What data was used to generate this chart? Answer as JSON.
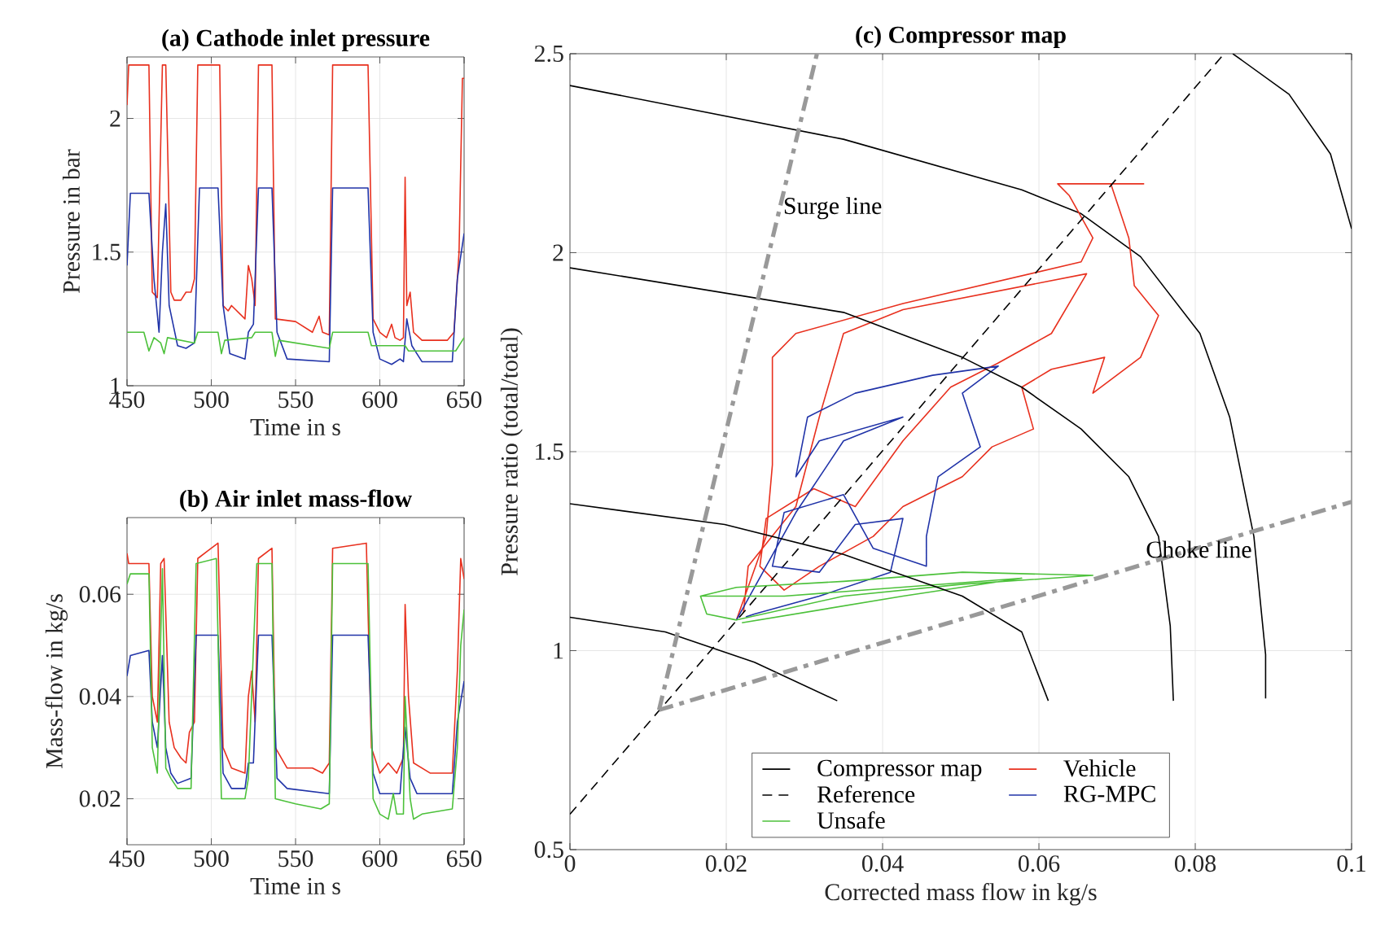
{
  "chart_data": [
    {
      "type": "line",
      "title": "(a) Cathode inlet pressure",
      "xlabel": "Time in s",
      "ylabel": "Pressure in bar",
      "xlim": [
        450,
        650
      ],
      "ylim": [
        1,
        2.23
      ],
      "xticks": [
        450,
        500,
        550,
        600,
        650
      ],
      "yticks": [
        1,
        1.5,
        2
      ],
      "grid": true,
      "series": [
        {
          "color": "#e8301e",
          "x": [
            450,
            451,
            463,
            465,
            468,
            471,
            473,
            476,
            478,
            482,
            485,
            488,
            490,
            492,
            505,
            507,
            510,
            512,
            520,
            522,
            524,
            526,
            528,
            536,
            538,
            550,
            560,
            564,
            566,
            570,
            572,
            593,
            596,
            600,
            604,
            607,
            609,
            612,
            614,
            615,
            616,
            618,
            620,
            625,
            640,
            644,
            647,
            649,
            650
          ],
          "values": [
            2.05,
            2.2,
            2.2,
            1.35,
            1.33,
            2.2,
            2.2,
            1.35,
            1.32,
            1.32,
            1.35,
            1.35,
            1.4,
            2.2,
            2.2,
            1.3,
            1.28,
            1.3,
            1.25,
            1.45,
            1.4,
            1.3,
            2.2,
            2.2,
            1.25,
            1.24,
            1.2,
            1.26,
            1.2,
            1.19,
            2.2,
            2.2,
            1.25,
            1.2,
            1.18,
            1.23,
            1.18,
            1.17,
            1.18,
            1.78,
            1.3,
            1.35,
            1.2,
            1.17,
            1.17,
            1.2,
            1.5,
            2.15,
            2.15
          ]
        },
        {
          "color": "#2033a8",
          "x": [
            450,
            452,
            463,
            466,
            469,
            471,
            473,
            475,
            480,
            485,
            490,
            493,
            504,
            507,
            511,
            520,
            522,
            525,
            528,
            536,
            539,
            545,
            570,
            572,
            593,
            596,
            600,
            607,
            612,
            614,
            616,
            619,
            625,
            643,
            646,
            650
          ],
          "values": [
            1.45,
            1.72,
            1.72,
            1.4,
            1.2,
            1.5,
            1.68,
            1.3,
            1.15,
            1.14,
            1.16,
            1.74,
            1.74,
            1.3,
            1.12,
            1.1,
            1.2,
            1.23,
            1.74,
            1.74,
            1.2,
            1.1,
            1.09,
            1.74,
            1.74,
            1.2,
            1.1,
            1.08,
            1.1,
            1.09,
            1.25,
            1.15,
            1.09,
            1.09,
            1.4,
            1.57
          ]
        },
        {
          "color": "#4cc13a",
          "x": [
            450,
            460,
            463,
            466,
            470,
            472,
            474,
            490,
            492,
            504,
            506,
            508,
            524,
            526,
            536,
            538,
            540,
            570,
            572,
            593,
            595,
            615,
            617,
            645,
            650
          ],
          "values": [
            1.2,
            1.2,
            1.13,
            1.18,
            1.16,
            1.12,
            1.18,
            1.16,
            1.2,
            1.2,
            1.12,
            1.17,
            1.18,
            1.2,
            1.2,
            1.11,
            1.17,
            1.14,
            1.2,
            1.2,
            1.15,
            1.15,
            1.13,
            1.13,
            1.18
          ]
        }
      ]
    },
    {
      "type": "line",
      "title": "(b) Air inlet mass-flow",
      "xlabel": "Time in s",
      "ylabel": "Mass-flow in kg/s",
      "xlim": [
        450,
        650
      ],
      "ylim": [
        0.011,
        0.075
      ],
      "xticks": [
        450,
        500,
        550,
        600,
        650
      ],
      "yticks": [
        0.02,
        0.04,
        0.06
      ],
      "grid": true,
      "series": [
        {
          "color": "#e8301e",
          "x": [
            450,
            451,
            463,
            465,
            468,
            470,
            472,
            475,
            478,
            482,
            485,
            487,
            490,
            492,
            500,
            504,
            507,
            512,
            520,
            522,
            524,
            526,
            528,
            536,
            538,
            545,
            560,
            566,
            570,
            572,
            592,
            595,
            600,
            605,
            610,
            614,
            615,
            617,
            620,
            630,
            643,
            646,
            648,
            650
          ],
          "values": [
            0.068,
            0.066,
            0.066,
            0.04,
            0.035,
            0.066,
            0.067,
            0.035,
            0.03,
            0.028,
            0.027,
            0.033,
            0.035,
            0.067,
            0.069,
            0.07,
            0.03,
            0.026,
            0.025,
            0.04,
            0.045,
            0.035,
            0.067,
            0.069,
            0.03,
            0.026,
            0.026,
            0.025,
            0.027,
            0.069,
            0.07,
            0.03,
            0.025,
            0.027,
            0.025,
            0.028,
            0.058,
            0.04,
            0.027,
            0.025,
            0.025,
            0.045,
            0.067,
            0.063
          ]
        },
        {
          "color": "#2033a8",
          "x": [
            450,
            452,
            463,
            465,
            468,
            471,
            473,
            476,
            480,
            488,
            491,
            504,
            507,
            512,
            520,
            522,
            525,
            528,
            536,
            539,
            545,
            570,
            572,
            593,
            596,
            600,
            612,
            615,
            618,
            622,
            643,
            646,
            650
          ],
          "values": [
            0.044,
            0.048,
            0.049,
            0.035,
            0.03,
            0.048,
            0.03,
            0.025,
            0.023,
            0.024,
            0.052,
            0.052,
            0.025,
            0.022,
            0.022,
            0.027,
            0.027,
            0.052,
            0.052,
            0.024,
            0.022,
            0.021,
            0.052,
            0.052,
            0.025,
            0.021,
            0.021,
            0.034,
            0.024,
            0.021,
            0.021,
            0.035,
            0.043
          ]
        },
        {
          "color": "#4cc13a",
          "x": [
            450,
            452,
            463,
            465,
            468,
            471,
            473,
            476,
            480,
            488,
            491,
            503,
            506,
            520,
            522,
            527,
            536,
            538,
            550,
            565,
            570,
            572,
            593,
            596,
            600,
            605,
            608,
            610,
            614,
            615,
            618,
            620,
            625,
            643,
            646,
            648,
            650
          ],
          "values": [
            0.062,
            0.064,
            0.064,
            0.03,
            0.025,
            0.065,
            0.026,
            0.024,
            0.022,
            0.022,
            0.066,
            0.067,
            0.02,
            0.02,
            0.024,
            0.066,
            0.066,
            0.02,
            0.019,
            0.018,
            0.019,
            0.066,
            0.066,
            0.02,
            0.017,
            0.016,
            0.021,
            0.017,
            0.017,
            0.04,
            0.02,
            0.016,
            0.017,
            0.018,
            0.03,
            0.05,
            0.057
          ]
        }
      ]
    },
    {
      "type": "line",
      "title": "(c) Compressor map",
      "xlabel": "Corrected mass flow in kg/s",
      "ylabel": "Pressure ratio (total/total)",
      "xlim": [
        0,
        0.1
      ],
      "ylim": [
        0.5,
        2.5
      ],
      "xticks": [
        0,
        0.02,
        0.04,
        0.06,
        0.08,
        0.1
      ],
      "yticks": [
        0.5,
        1,
        1.5,
        2,
        2.5
      ],
      "grid": true,
      "legend": "bottom",
      "annotations": [
        {
          "text": "Surge line",
          "x": 0.0262,
          "y": 2.063
        },
        {
          "text": "Choke line",
          "x": 0.0726,
          "y": 1.212
        }
      ],
      "series": [
        {
          "name": "Compressor map",
          "color": "#000000",
          "x": [
            0,
            0.035,
            0.0578,
            0.0654,
            0.073,
            0.0806,
            0.0844,
            0.0875,
            0.089,
            0.089
          ],
          "values": [
            2.42,
            2.285,
            2.158,
            2.098,
            1.99,
            1.797,
            1.587,
            1.287,
            0.99,
            0.88
          ]
        },
        {
          "name": "Vehicle",
          "color": "#e8301e",
          "x": [
            0.0213,
            0.0251,
            0.0259,
            0.0259,
            0.0289,
            0.0426,
            0.0654,
            0.0669,
            0.0639,
            0.0624,
            0.0734,
            0.0692,
            0.0715,
            0.0722,
            0.0753,
            0.073,
            0.0669,
            0.0684,
            0.0616,
            0.0578,
            0.0593,
            0.054,
            0.0502,
            0.0426,
            0.0388,
            0.0319,
            0.0274,
            0.0243,
            0.0251,
            0.0312,
            0.0365,
            0.0426,
            0.0487,
            0.0547,
            0.0616,
            0.0661,
            0.0426,
            0.035,
            0.0319,
            0.0289,
            0.0228,
            0.0222
          ],
          "values": [
            1.077,
            1.287,
            1.467,
            1.737,
            1.797,
            1.872,
            1.977,
            2.037,
            2.143,
            2.173,
            2.173,
            2.173,
            2.037,
            1.917,
            1.842,
            1.737,
            1.647,
            1.737,
            1.707,
            1.662,
            1.557,
            1.512,
            1.437,
            1.362,
            1.287,
            1.212,
            1.152,
            1.212,
            1.332,
            1.407,
            1.362,
            1.527,
            1.662,
            1.722,
            1.797,
            1.947,
            1.857,
            1.797,
            1.587,
            1.362,
            1.212,
            1.095
          ]
        },
        {
          "name": "Reference",
          "color": "#000000",
          "line_style": "dashed",
          "x": [
            0,
            0.0837
          ],
          "values": [
            0.589,
            2.5
          ]
        },
        {
          "name": "RG-MPC",
          "color": "#2033a8",
          "x": [
            0.0213,
            0.0289,
            0.035,
            0.0426,
            0.0319,
            0.0289,
            0.0304,
            0.0365,
            0.0464,
            0.0548,
            0.0502,
            0.0525,
            0.0471,
            0.0456,
            0.0456,
            0.0388,
            0.035,
            0.0274,
            0.0259,
            0.0319,
            0.0365,
            0.0426,
            0.041,
            0.0319,
            0.0236,
            0.0225
          ],
          "values": [
            1.077,
            1.347,
            1.527,
            1.587,
            1.527,
            1.437,
            1.587,
            1.647,
            1.692,
            1.715,
            1.647,
            1.512,
            1.437,
            1.287,
            1.212,
            1.257,
            1.392,
            1.347,
            1.212,
            1.197,
            1.317,
            1.332,
            1.197,
            1.137,
            1.092,
            1.085
          ]
        },
        {
          "name": "Unsafe",
          "color": "#4cc13a",
          "x": [
            0.0167,
            0.0213,
            0.035,
            0.0502,
            0.0669,
            0.0502,
            0.035,
            0.0213,
            0.0175,
            0.0167,
            0.0274,
            0.0578,
            0.0426,
            0.022
          ],
          "values": [
            1.137,
            1.159,
            1.174,
            1.197,
            1.189,
            1.167,
            1.137,
            1.077,
            1.092,
            1.137,
            1.137,
            1.182,
            1.137,
            1.07
          ]
        },
        {
          "color": "#000000",
          "x": [
            0,
            0.035,
            0.0502,
            0.0578,
            0.0654,
            0.0715,
            0.0753,
            0.0768,
            0.0772
          ],
          "values": [
            1.962,
            1.85,
            1.737,
            1.662,
            1.557,
            1.437,
            1.287,
            1.062,
            0.874
          ]
        },
        {
          "color": "#000000",
          "x": [
            0,
            0.0198,
            0.035,
            0.0502,
            0.0578,
            0.0612
          ],
          "values": [
            1.369,
            1.317,
            1.242,
            1.137,
            1.047,
            0.874
          ]
        },
        {
          "color": "#000000",
          "x": [
            0,
            0.0122,
            0.0236,
            0.0342
          ],
          "values": [
            1.084,
            1.047,
            0.971,
            0.874
          ]
        },
        {
          "color": "#000000",
          "x": [
            0.0848,
            0.092,
            0.0973,
            0.1
          ],
          "values": [
            2.5,
            2.398,
            2.248,
            2.06
          ]
        },
        {
          "color": "#999999",
          "line_style": "dashdot",
          "x": [
            0.0114,
            0.0316
          ],
          "values": [
            0.851,
            2.5
          ]
        },
        {
          "color": "#999999",
          "line_style": "dashdot",
          "x": [
            0.0114,
            0.1
          ],
          "values": [
            0.851,
            1.374
          ]
        }
      ]
    }
  ]
}
